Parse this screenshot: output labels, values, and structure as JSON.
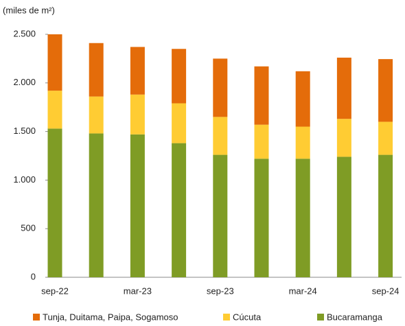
{
  "chart_data": {
    "type": "stacked_bar",
    "y_label": "(miles de m²)",
    "categories": [
      "sep-22",
      null,
      "mar-23",
      null,
      "sep-23",
      null,
      "mar-24",
      null,
      "sep-24"
    ],
    "series": [
      {
        "name": "Tunja, Duitama, Paipa, Sogamoso",
        "color": "#e46c0a",
        "values": [
          580,
          550,
          490,
          560,
          600,
          600,
          570,
          630,
          645
        ]
      },
      {
        "name": "Cúcuta",
        "color": "#ffcc33",
        "values": [
          390,
          380,
          410,
          410,
          390,
          350,
          330,
          390,
          340
        ]
      },
      {
        "name": "Bucaramanga",
        "color": "#7f9c25",
        "values": [
          1530,
          1480,
          1470,
          1380,
          1260,
          1220,
          1220,
          1240,
          1260
        ]
      }
    ],
    "ylim": [
      0,
      2500
    ],
    "yticks": [
      0,
      500,
      {
        "value": 1000,
        "label": "1.000"
      },
      {
        "value": 1500,
        "label": "1.500"
      },
      {
        "value": 2000,
        "label": "2.000"
      },
      {
        "value": 2500,
        "label": "2.500"
      }
    ],
    "grid": false,
    "legend": "bottom"
  }
}
